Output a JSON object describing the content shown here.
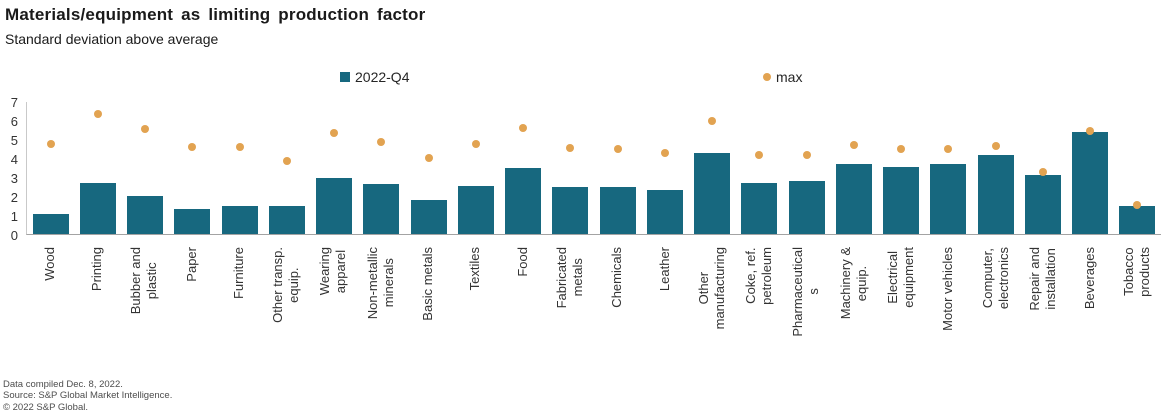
{
  "title": "Materials/equipment as limiting production factor",
  "subtitle": "Standard deviation above average",
  "legend": {
    "series1_label": "2022-Q4",
    "series2_label": "max"
  },
  "colors": {
    "bar": "#17687F",
    "dot": "#E2A351"
  },
  "y_axis": {
    "ticks": [
      7,
      6,
      5,
      4,
      3,
      2,
      1,
      0
    ]
  },
  "footer": {
    "line1": "Data compiled Dec. 8, 2022.",
    "line2": "Source: S&P Global Market Intelligence.",
    "line3": "© 2022 S&P Global."
  },
  "chart_data": {
    "type": "bar",
    "title": "Materials/equipment as limiting production factor",
    "subtitle": "Standard deviation above average",
    "ylabel": "Standard deviation above average",
    "ylim": [
      0,
      7
    ],
    "grid": false,
    "legend_position": "top",
    "categories": [
      "Wood",
      "Printing",
      "Bubber and\nplastic",
      "Paper",
      "Furniture",
      "Other transp.\nequip.",
      "Wearing\napparel",
      "Non-metallic\nminerals",
      "Basic metals",
      "Textiles",
      "Food",
      "Fabricated\nmetals",
      "Chemicals",
      "Leather",
      "Other\nmanufacturing",
      "Coke, ref.\npetroleum",
      "Pharmaceutical\ns",
      "Machinery &\nequip.",
      "Electrical\nequipment",
      "Motor vehicles",
      "Computer,\nelectronics",
      "Repair and\ninstallation",
      "Beverages",
      "Tobacco\nproducts"
    ],
    "series": [
      {
        "name": "2022-Q4",
        "marker": "bar",
        "values": [
          1.05,
          2.7,
          2.0,
          1.3,
          1.5,
          1.45,
          2.95,
          2.65,
          1.8,
          2.55,
          3.45,
          2.5,
          2.5,
          2.3,
          4.25,
          2.7,
          2.8,
          3.7,
          3.55,
          3.7,
          4.15,
          3.1,
          5.35,
          1.45
        ]
      },
      {
        "name": "max",
        "marker": "point",
        "values": [
          4.75,
          6.3,
          5.55,
          4.6,
          4.6,
          3.85,
          5.3,
          4.85,
          4.0,
          4.75,
          5.6,
          4.55,
          4.45,
          4.25,
          5.95,
          4.15,
          4.15,
          4.7,
          4.45,
          4.45,
          4.65,
          3.25,
          5.4,
          1.55
        ]
      }
    ]
  }
}
